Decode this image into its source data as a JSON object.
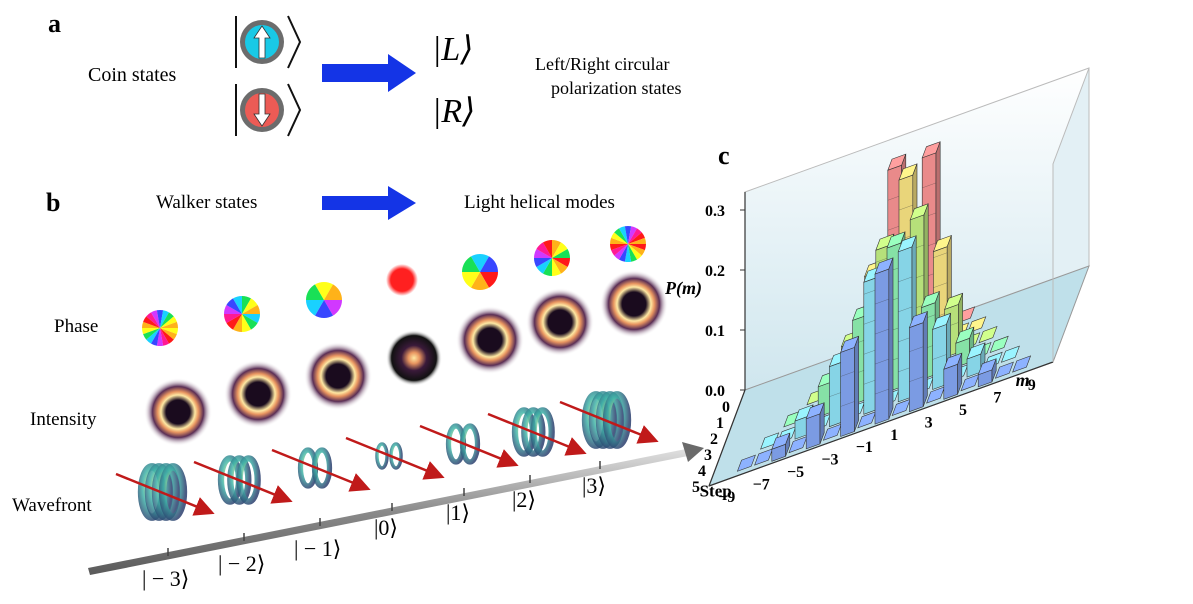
{
  "panel_a": {
    "letter": "a",
    "coin_label": "Coin states",
    "kets": [
      "|L⟩",
      "|R⟩"
    ],
    "polarization_label_line1": "Left/Right circular",
    "polarization_label_line2": "polarization states",
    "arrow_color": "#1434e6",
    "up_coin_color": "#19c9e6",
    "down_coin_color": "#ec5b55"
  },
  "panel_b": {
    "letter": "b",
    "walker_label": "Walker states",
    "helical_label": "Light helical modes",
    "row_labels": {
      "phase": "Phase",
      "intensity": "Intensity",
      "wavefront": "Wavefront"
    },
    "basis_labels": [
      "| − 3⟩",
      "| − 2⟩",
      "| − 1⟩",
      "|0⟩",
      "|1⟩",
      "|2⟩",
      "|3⟩"
    ],
    "topological_charges": [
      -3,
      -2,
      -1,
      0,
      1,
      2,
      3
    ],
    "arrow_color": "#1434e6"
  },
  "panel_c": {
    "letter": "c",
    "chart_data": {
      "type": "bar3d",
      "title": "",
      "ylabel": "P(m)",
      "xlabel": "m",
      "zlabel": "Step",
      "z_ticks": [
        "0",
        "1",
        "2",
        "3",
        "4",
        "5"
      ],
      "x_ticks": [
        "−9",
        "−7",
        "−5",
        "−3",
        "−1",
        "1",
        "3",
        "5",
        "7",
        "9"
      ],
      "y_ticks": [
        "0.0",
        "0.1",
        "0.2",
        "0.3"
      ],
      "ylim": [
        0,
        0.3
      ],
      "series": [
        {
          "step": 0,
          "color": "#e98a8a",
          "m": [
            -1,
            1
          ],
          "values": [
            0.3,
            0.3
          ]
        },
        {
          "step": 1,
          "color": "#e9d57a",
          "m": [
            -2,
            0,
            2
          ],
          "values": [
            0.16,
            0.3,
            0.16
          ]
        },
        {
          "step": 2,
          "color": "#b6e07a",
          "m": [
            -3,
            -1,
            1,
            3
          ],
          "values": [
            0.08,
            0.22,
            0.25,
            0.08
          ]
        },
        {
          "step": 3,
          "color": "#86e1a6",
          "m": [
            -4,
            -2,
            0,
            2,
            4
          ],
          "values": [
            0.05,
            0.14,
            0.24,
            0.12,
            0.04
          ]
        },
        {
          "step": 4,
          "color": "#86d4e6",
          "m": [
            -5,
            -3,
            -1,
            1,
            3,
            5
          ],
          "values": [
            0.03,
            0.1,
            0.22,
            0.25,
            0.1,
            0.03
          ]
        },
        {
          "step": 5,
          "color": "#7b9be3",
          "m": [
            -6,
            -4,
            -2,
            0,
            2,
            4,
            6
          ],
          "values": [
            0.02,
            0.05,
            0.14,
            0.25,
            0.14,
            0.05,
            0.02
          ]
        }
      ]
    }
  }
}
